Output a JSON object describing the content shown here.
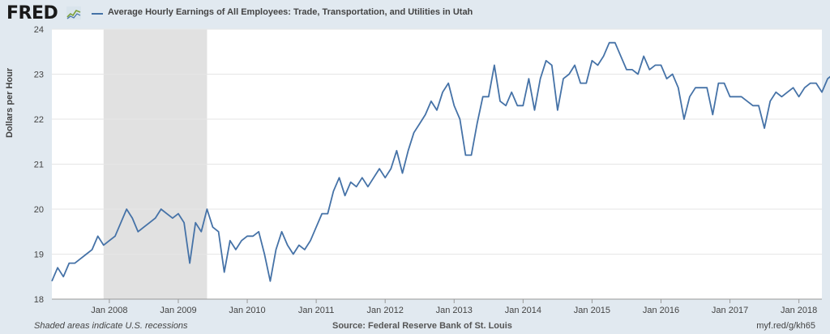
{
  "header": {
    "logo": "FRED",
    "title": "Average Hourly Earnings of All Employees: Trade, Transportation, and Utilities in Utah"
  },
  "footer": {
    "note": "Shaded areas indicate U.S. recessions",
    "source": "Source: Federal Reserve Bank of St. Louis",
    "link": "myf.red/g/kh65"
  },
  "colors": {
    "series": "#4572a7",
    "recession": "#e1e1e1",
    "background": "#e1e9f0",
    "grid": "#e6e6e6"
  },
  "chart_data": {
    "type": "line",
    "title": "Average Hourly Earnings of All Employees: Trade, Transportation, and Utilities in Utah",
    "ylabel": "Dollars per Hour",
    "xlabel": "",
    "ylim": [
      18,
      24
    ],
    "xlim": [
      "2007-03",
      "2018-05"
    ],
    "yticks": [
      18,
      19,
      20,
      21,
      22,
      23,
      24
    ],
    "xticks": [
      {
        "date": "2008-01",
        "label": "Jan 2008"
      },
      {
        "date": "2009-01",
        "label": "Jan 2009"
      },
      {
        "date": "2010-01",
        "label": "Jan 2010"
      },
      {
        "date": "2011-01",
        "label": "Jan 2011"
      },
      {
        "date": "2012-01",
        "label": "Jan 2012"
      },
      {
        "date": "2013-01",
        "label": "Jan 2013"
      },
      {
        "date": "2014-01",
        "label": "Jan 2014"
      },
      {
        "date": "2015-01",
        "label": "Jan 2015"
      },
      {
        "date": "2016-01",
        "label": "Jan 2016"
      },
      {
        "date": "2017-01",
        "label": "Jan 2017"
      },
      {
        "date": "2018-01",
        "label": "Jan 2018"
      }
    ],
    "recessions": [
      {
        "start": "2007-12",
        "end": "2009-06"
      }
    ],
    "grid": true,
    "series": [
      {
        "start": "2007-03",
        "frequency": "monthly",
        "values": [
          18.4,
          18.7,
          18.5,
          18.8,
          18.8,
          18.9,
          19.0,
          19.1,
          19.4,
          19.2,
          19.3,
          19.4,
          19.7,
          20.0,
          19.8,
          19.5,
          19.6,
          19.7,
          19.8,
          20.0,
          19.9,
          19.8,
          19.9,
          19.7,
          18.8,
          19.7,
          19.5,
          20.0,
          19.6,
          19.5,
          18.6,
          19.3,
          19.1,
          19.3,
          19.4,
          19.4,
          19.5,
          19.0,
          18.4,
          19.1,
          19.5,
          19.2,
          19.0,
          19.2,
          19.1,
          19.3,
          19.6,
          19.9,
          19.9,
          20.4,
          20.7,
          20.3,
          20.6,
          20.5,
          20.7,
          20.5,
          20.7,
          20.9,
          20.7,
          20.9,
          21.3,
          20.8,
          21.3,
          21.7,
          21.9,
          22.1,
          22.4,
          22.2,
          22.6,
          22.8,
          22.3,
          22.0,
          21.2,
          21.2,
          21.9,
          22.5,
          22.5,
          23.2,
          22.4,
          22.3,
          22.6,
          22.3,
          22.3,
          22.9,
          22.2,
          22.9,
          23.3,
          23.2,
          22.2,
          22.9,
          23.0,
          23.2,
          22.8,
          22.8,
          23.3,
          23.2,
          23.4,
          23.7,
          23.7,
          23.4,
          23.1,
          23.1,
          23.0,
          23.4,
          23.1,
          23.2,
          23.2,
          22.9,
          23.0,
          22.7,
          22.0,
          22.5,
          22.7,
          22.7,
          22.7,
          22.1,
          22.8,
          22.8,
          22.5,
          22.5,
          22.5,
          22.4,
          22.3,
          22.3,
          21.8,
          22.4,
          22.6,
          22.5,
          22.6,
          22.7,
          22.5,
          22.7,
          22.8,
          22.8,
          22.6,
          22.9,
          23.0
        ]
      }
    ]
  }
}
